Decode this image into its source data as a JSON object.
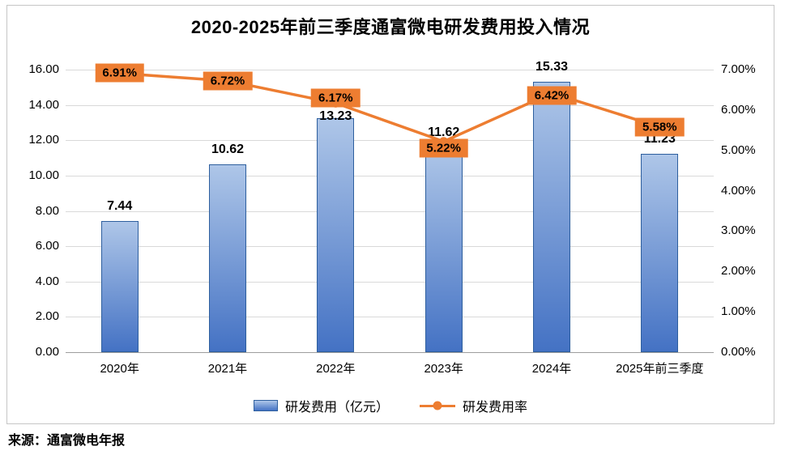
{
  "source": "来源：通富微电年报",
  "colors": {
    "bar_top": "#aec6e8",
    "bar_bottom": "#4472c4",
    "bar_border": "#2e5f9e",
    "line": "#ed7d31",
    "label_box": "#ed7d31",
    "grid": "#d9d9d9",
    "axis": "#9e9e9e"
  },
  "chart_data": {
    "type": "combo",
    "title": "2020-2025年前三季度通富微电研发费用投入情况",
    "categories": [
      "2020年",
      "2021年",
      "2022年",
      "2023年",
      "2024年",
      "2025年前三季度"
    ],
    "series": [
      {
        "name": "研发费用（亿元）",
        "type": "bar",
        "axis": "left",
        "values": [
          7.44,
          10.62,
          13.23,
          11.62,
          15.33,
          11.23
        ],
        "labels": [
          "7.44",
          "10.62",
          "13.23",
          "11.62",
          "15.33",
          "11.23"
        ]
      },
      {
        "name": "研发费用率",
        "type": "line",
        "axis": "right",
        "values": [
          6.91,
          6.72,
          6.17,
          5.22,
          6.42,
          5.58
        ],
        "labels": [
          "6.91%",
          "6.72%",
          "6.17%",
          "5.22%",
          "6.42%",
          "5.58%"
        ]
      }
    ],
    "left_axis": {
      "min": 0,
      "max": 16,
      "step": 2,
      "ticks": [
        "0.00",
        "2.00",
        "4.00",
        "6.00",
        "8.00",
        "10.00",
        "12.00",
        "14.00",
        "16.00"
      ]
    },
    "right_axis": {
      "min": 0,
      "max": 7,
      "step": 1,
      "ticks": [
        "0.00%",
        "1.00%",
        "2.00%",
        "3.00%",
        "4.00%",
        "5.00%",
        "6.00%",
        "7.00%"
      ]
    },
    "grid": true,
    "legend_position": "bottom"
  }
}
